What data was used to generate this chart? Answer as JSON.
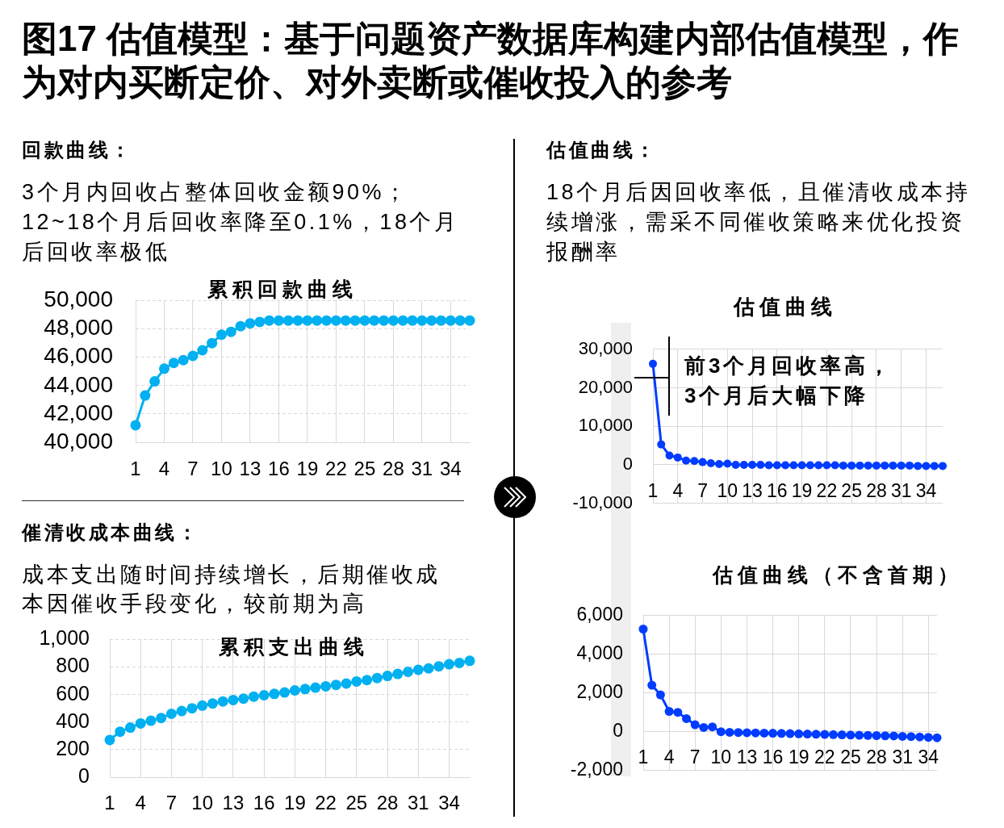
{
  "chart_data": [
    {
      "type": "other",
      "title": "图17 估值模型：基于问题资产数据库构建内部估值模型，作为对内买断定价、对外卖断或催收投入的参考"
    },
    {
      "type": "other",
      "title": "回款曲线：",
      "annotations": [
        "3个月内回收占整体回收金额90%；",
        "12~18个月后回收率降至0.1%，18个月后回收率极低"
      ]
    },
    {
      "type": "line",
      "title": "累积回款曲线",
      "categories": [
        "1",
        null,
        null,
        "4",
        null,
        null,
        "7",
        null,
        null,
        "10",
        null,
        null,
        "13",
        null,
        null,
        "16",
        null,
        null,
        "19",
        null,
        null,
        "22",
        null,
        null,
        "25",
        null,
        null,
        "28",
        null,
        null,
        "31",
        null,
        null,
        "34",
        null,
        null
      ],
      "values": [
        41200,
        43300,
        44300,
        45200,
        45600,
        45800,
        46100,
        46500,
        47000,
        47600,
        47800,
        48200,
        48400,
        48500,
        48600,
        48600,
        48600,
        48600,
        48600,
        48600,
        48600,
        48600,
        48600,
        48600,
        48600,
        48600,
        48600,
        48600,
        48600,
        48600,
        48600,
        48600,
        48600,
        48600,
        48600,
        48600
      ],
      "color": "#00b0f0",
      "ylim": [
        40000,
        50000
      ],
      "yticks": [
        {
          "value": 40000,
          "label": "40,000"
        },
        {
          "value": 42000,
          "label": "42,000"
        },
        {
          "value": 44000,
          "label": "44,000"
        },
        {
          "value": 46000,
          "label": "46,000"
        },
        {
          "value": 48000,
          "label": "48,000"
        },
        {
          "value": 50000,
          "label": "50,000"
        }
      ],
      "grid": true,
      "marker": "circle"
    },
    {
      "type": "other",
      "title": "催清收成本曲线：",
      "annotations": [
        "成本支出随时间持续增长，后期催收成本因催收手段变化，较前期为高"
      ]
    },
    {
      "type": "line",
      "title": "累积支出曲线",
      "categories": [
        "1",
        null,
        null,
        "4",
        null,
        null,
        "7",
        null,
        null,
        "10",
        null,
        null,
        "13",
        null,
        null,
        "16",
        null,
        null,
        "19",
        null,
        null,
        "22",
        null,
        null,
        "25",
        null,
        null,
        "28",
        null,
        null,
        "31",
        null,
        null,
        "34",
        null,
        null
      ],
      "values": [
        270,
        330,
        360,
        390,
        410,
        430,
        460,
        480,
        500,
        520,
        535,
        550,
        560,
        570,
        585,
        595,
        605,
        615,
        630,
        640,
        650,
        660,
        670,
        680,
        695,
        705,
        720,
        735,
        750,
        765,
        780,
        790,
        805,
        820,
        830,
        845
      ],
      "color": "#00b0f0",
      "ylim": [
        0,
        1000
      ],
      "yticks": [
        0,
        200,
        400,
        600,
        800,
        {
          "value": 1000,
          "label": "1,000"
        }
      ],
      "grid": true,
      "marker": "circle"
    },
    {
      "type": "other",
      "title": "估值曲线：",
      "annotations": [
        "18个月后因回收率低，且催清收成本持续增涨，需采不同催收策略来优化投资报酬率"
      ]
    },
    {
      "type": "line",
      "title": "估值曲线",
      "annotations": [
        "前3个月回收率高，3个月后大幅下降"
      ],
      "categories": [
        "1",
        null,
        null,
        "4",
        null,
        null,
        "7",
        null,
        null,
        "10",
        null,
        null,
        "13",
        null,
        null,
        "16",
        null,
        null,
        "19",
        null,
        null,
        "22",
        null,
        null,
        "25",
        null,
        null,
        "28",
        null,
        null,
        "31",
        null,
        null,
        "34",
        null,
        null
      ],
      "values": [
        26200,
        5300,
        2400,
        1900,
        1100,
        1000,
        700,
        400,
        200,
        300,
        0,
        0,
        0,
        0,
        -100,
        -100,
        -100,
        -100,
        -100,
        -100,
        -100,
        -100,
        -100,
        -200,
        -200,
        -200,
        -200,
        -200,
        -200,
        -200,
        -200,
        -200,
        -300,
        -300,
        -300,
        -300
      ],
      "color": "#003cff",
      "ylim": [
        -10000,
        30000
      ],
      "yticks": [
        {
          "value": -10000,
          "label": "-10,000"
        },
        0,
        {
          "value": 10000,
          "label": "10,000"
        },
        {
          "value": 20000,
          "label": "20,000"
        },
        {
          "value": 30000,
          "label": "30,000"
        }
      ],
      "grid": true,
      "marker": "circle"
    },
    {
      "type": "line",
      "title": "估值曲线（不含首期）",
      "categories": [
        "1",
        null,
        null,
        "4",
        null,
        null,
        "7",
        null,
        null,
        "10",
        null,
        null,
        "13",
        null,
        null,
        "16",
        null,
        null,
        "19",
        null,
        null,
        "22",
        null,
        null,
        "25",
        null,
        null,
        "28",
        null,
        null,
        "31",
        null,
        null,
        "34",
        null
      ],
      "values": [
        5300,
        2400,
        1900,
        1050,
        1000,
        680,
        360,
        220,
        250,
        0,
        -30,
        -40,
        -50,
        -60,
        -70,
        -80,
        -90,
        -100,
        -110,
        -120,
        -130,
        -140,
        -150,
        -160,
        -170,
        -180,
        -190,
        -200,
        -210,
        -220,
        -240,
        -250,
        -270,
        -290,
        -310
      ],
      "color": "#003cff",
      "ylim": [
        -2000,
        6000
      ],
      "yticks": [
        {
          "value": -2000,
          "label": "-2,000"
        },
        0,
        {
          "value": 2000,
          "label": "2,000"
        },
        {
          "value": 4000,
          "label": "4,000"
        },
        {
          "value": 6000,
          "label": "6,000"
        }
      ],
      "grid": true,
      "marker": "circle"
    }
  ]
}
